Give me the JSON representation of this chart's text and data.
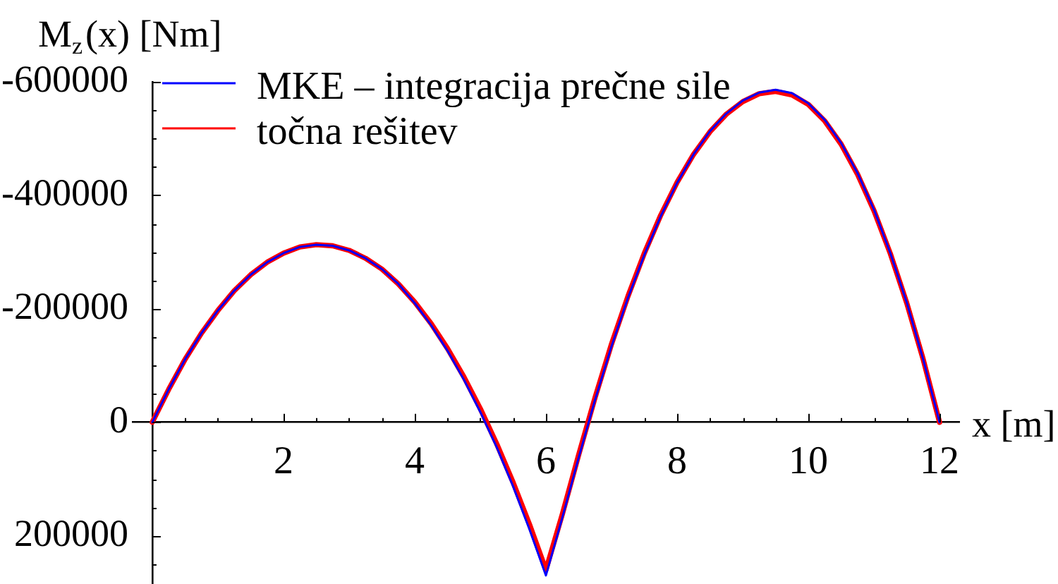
{
  "chart_data": {
    "type": "line",
    "ylabel": "M$_{z}$(x) [Nm]",
    "xlabel": "x [m]",
    "x": [
      0,
      0.25,
      0.5,
      0.75,
      1,
      1.25,
      1.5,
      1.75,
      2,
      2.25,
      2.5,
      2.75,
      3,
      3.25,
      3.5,
      3.75,
      4,
      4.25,
      4.5,
      4.75,
      5,
      5.25,
      5.5,
      5.75,
      6,
      6.25,
      6.5,
      6.75,
      7,
      7.25,
      7.5,
      7.75,
      8,
      8.25,
      8.5,
      8.75,
      9,
      9.25,
      9.5,
      9.75,
      10,
      10.25,
      10.5,
      10.75,
      11,
      11.25,
      11.5,
      11.75,
      12
    ],
    "series": [
      {
        "name": "MKE – integracija prečne sile",
        "color": "#0000ff",
        "values": [
          0,
          -58000,
          -111000,
          -157000,
          -197000,
          -232000,
          -260000,
          -282000,
          -298000,
          -309000,
          -313000,
          -311000,
          -303000,
          -289000,
          -270000,
          -244000,
          -210000,
          -171000,
          -126000,
          -75000,
          -18000,
          44000,
          113000,
          189000,
          270000,
          168000,
          62000,
          -40000,
          -134000,
          -219000,
          -295000,
          -363000,
          -422000,
          -472000,
          -513000,
          -544000,
          -567000,
          -581000,
          -586000,
          -580000,
          -562000,
          -533000,
          -492000,
          -439000,
          -375000,
          -298000,
          -211000,
          -111000,
          0
        ]
      },
      {
        "name": "točna rešitev",
        "color": "#ff0000",
        "values": [
          0,
          -58000,
          -111000,
          -157000,
          -197000,
          -232000,
          -260000,
          -282000,
          -298000,
          -309000,
          -313000,
          -311000,
          -303000,
          -289000,
          -270000,
          -244000,
          -212000,
          -174000,
          -130000,
          -80000,
          -24000,
          38000,
          106000,
          180000,
          260000,
          162000,
          57000,
          -44000,
          -138000,
          -222000,
          -298000,
          -365000,
          -423000,
          -472000,
          -512000,
          -543000,
          -565000,
          -579000,
          -583000,
          -577000,
          -560000,
          -531000,
          -490000,
          -437000,
          -373000,
          -297000,
          -210000,
          -111000,
          0
        ]
      }
    ],
    "xlim": [
      -0.3,
      12.3
    ],
    "xticks": [
      {
        "value": 0.5,
        "label": null
      },
      {
        "value": 1,
        "label": null
      },
      {
        "value": 1.5,
        "label": null
      },
      2,
      {
        "value": 2.5,
        "label": null
      },
      {
        "value": 3,
        "label": null
      },
      {
        "value": 3.5,
        "label": null
      },
      4,
      {
        "value": 4.5,
        "label": null
      },
      {
        "value": 5,
        "label": null
      },
      {
        "value": 5.5,
        "label": null
      },
      6,
      {
        "value": 6.5,
        "label": null
      },
      {
        "value": 7,
        "label": null
      },
      {
        "value": 7.5,
        "label": null
      },
      8,
      {
        "value": 8.5,
        "label": null
      },
      {
        "value": 9,
        "label": null
      },
      {
        "value": 9.5,
        "label": null
      },
      10,
      {
        "value": 10.5,
        "label": null
      },
      {
        "value": 11,
        "label": null
      },
      {
        "value": 11.5,
        "label": null
      },
      12
    ],
    "ylim": [
      285000,
      -600000
    ],
    "yticks": [
      -600000,
      {
        "value": -550000,
        "label": null
      },
      {
        "value": -500000,
        "label": null
      },
      {
        "value": -450000,
        "label": null
      },
      -400000,
      {
        "value": -350000,
        "label": null
      },
      {
        "value": -300000,
        "label": null
      },
      {
        "value": -250000,
        "label": null
      },
      -200000,
      {
        "value": -150000,
        "label": null
      },
      {
        "value": -100000,
        "label": null
      },
      {
        "value": -50000,
        "label": null
      },
      0,
      {
        "value": 50000,
        "label": null
      },
      {
        "value": 100000,
        "label": null
      },
      {
        "value": 150000,
        "label": null
      },
      200000,
      {
        "value": 250000,
        "label": null
      }
    ],
    "legend": "top left"
  }
}
